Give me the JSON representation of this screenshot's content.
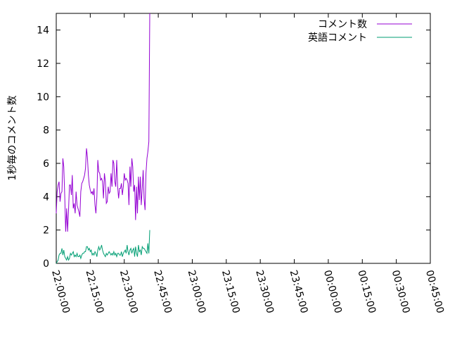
{
  "chart_data": {
    "type": "line",
    "ylabel": "1秒毎のコメント数",
    "ylim": [
      0,
      15
    ],
    "yticks": [
      0,
      2,
      4,
      6,
      8,
      10,
      12,
      14
    ],
    "xticks": [
      "22:00:00",
      "22:15:00",
      "22:30:00",
      "22:45:00",
      "23:00:00",
      "23:15:00",
      "23:30:00",
      "23:45:00",
      "00:00:00",
      "00:15:00",
      "00:30:00",
      "00:45:00"
    ],
    "legend_position": "top-right",
    "grid": false,
    "x_start": "22:00:00",
    "x_step_seconds": 25,
    "series": [
      {
        "name": "コメント数",
        "color": "#9400d3",
        "values": [
          3.0,
          4.3,
          4.7,
          4.9,
          3.7,
          4.2,
          4.3,
          6.3,
          5.8,
          4.0,
          1.9,
          3.3,
          1.9,
          3.2,
          4.7,
          4.7,
          4.1,
          5.3,
          3.3,
          3.6,
          3.0,
          4.3,
          3.5,
          3.3,
          3.1,
          2.8,
          4.3,
          4.8,
          4.9,
          5.1,
          5.3,
          5.7,
          6.9,
          6.4,
          5.3,
          4.7,
          4.4,
          4.2,
          4.3,
          4.1,
          4.5,
          3.5,
          3.0,
          4.0,
          6.2,
          5.5,
          5.4,
          5.0,
          5.1,
          4.9,
          3.9,
          5.4,
          4.9,
          3.6,
          3.7,
          4.6,
          4.2,
          4.3,
          5.4,
          4.6,
          6.2,
          6.0,
          4.9,
          4.6,
          6.2,
          4.6,
          3.9,
          4.5,
          4.5,
          4.8,
          4.1,
          4.6,
          5.4,
          5.0,
          5.1,
          5.0,
          4.8,
          3.5,
          5.8,
          4.6,
          6.3,
          5.8,
          4.3,
          4.7,
          2.6,
          4.6,
          3.0,
          5.2,
          3.8,
          5.2,
          3.5,
          4.5,
          5.6,
          3.9,
          3.2,
          5.4,
          6.3,
          6.7,
          7.3,
          15.0
        ]
      },
      {
        "name": "英語コメント",
        "color": "#009e73",
        "values": [
          0.0,
          0.1,
          0.2,
          0.5,
          0.6,
          0.6,
          0.9,
          0.5,
          0.8,
          0.4,
          0.3,
          0.2,
          0.4,
          0.2,
          0.3,
          0.6,
          0.5,
          0.6,
          0.7,
          0.4,
          0.5,
          0.4,
          0.6,
          0.4,
          0.4,
          0.5,
          0.3,
          0.5,
          0.6,
          0.6,
          0.7,
          0.7,
          1.0,
          1.0,
          0.8,
          0.9,
          0.7,
          0.8,
          0.5,
          0.6,
          0.5,
          0.7,
          0.6,
          0.4,
          0.8,
          1.0,
          0.8,
          0.9,
          1.1,
          0.8,
          0.6,
          0.5,
          0.4,
          0.6,
          0.5,
          0.6,
          0.7,
          0.6,
          0.5,
          0.6,
          0.5,
          0.7,
          0.5,
          0.6,
          0.4,
          0.6,
          0.6,
          0.5,
          0.5,
          0.7,
          0.4,
          0.6,
          0.7,
          0.8,
          0.6,
          1.1,
          0.7,
          0.5,
          0.8,
          0.9,
          0.6,
          0.8,
          0.9,
          0.4,
          1.0,
          0.6,
          0.4,
          1.1,
          0.7,
          0.8,
          0.5,
          1.0,
          0.9,
          0.9,
          0.8,
          0.7,
          0.6,
          1.2,
          0.6,
          2.0
        ]
      }
    ]
  }
}
